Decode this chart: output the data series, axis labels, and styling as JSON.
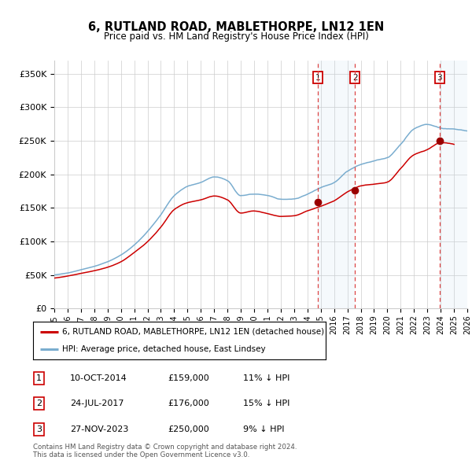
{
  "title": "6, RUTLAND ROAD, MABLETHORPE, LN12 1EN",
  "subtitle": "Price paid vs. HM Land Registry's House Price Index (HPI)",
  "ylim": [
    0,
    370000
  ],
  "yticks": [
    0,
    50000,
    100000,
    150000,
    200000,
    250000,
    300000,
    350000
  ],
  "xlim": [
    1995,
    2026
  ],
  "red_line_color": "#cc0000",
  "blue_line_color": "#7aadcf",
  "sale1_x": 2014.78,
  "sale1_y": 159000,
  "sale2_x": 2017.56,
  "sale2_y": 176000,
  "sale3_x": 2023.91,
  "sale3_y": 250000,
  "span12_start": 2014.78,
  "span12_end": 2017.56,
  "span3_start": 2023.91,
  "span3_end": 2026,
  "legend_label_red": "6, RUTLAND ROAD, MABLETHORPE, LN12 1EN (detached house)",
  "legend_label_blue": "HPI: Average price, detached house, East Lindsey",
  "table_entries": [
    {
      "num": "1",
      "date": "10-OCT-2014",
      "price": "£159,000",
      "hpi": "11% ↓ HPI"
    },
    {
      "num": "2",
      "date": "24-JUL-2017",
      "price": "£176,000",
      "hpi": "15% ↓ HPI"
    },
    {
      "num": "3",
      "date": "27-NOV-2023",
      "price": "£250,000",
      "hpi": "9% ↓ HPI"
    }
  ],
  "footnote": "Contains HM Land Registry data © Crown copyright and database right 2024.\nThis data is licensed under the Open Government Licence v3.0.",
  "bg_color": "#ffffff",
  "grid_color": "#cccccc"
}
